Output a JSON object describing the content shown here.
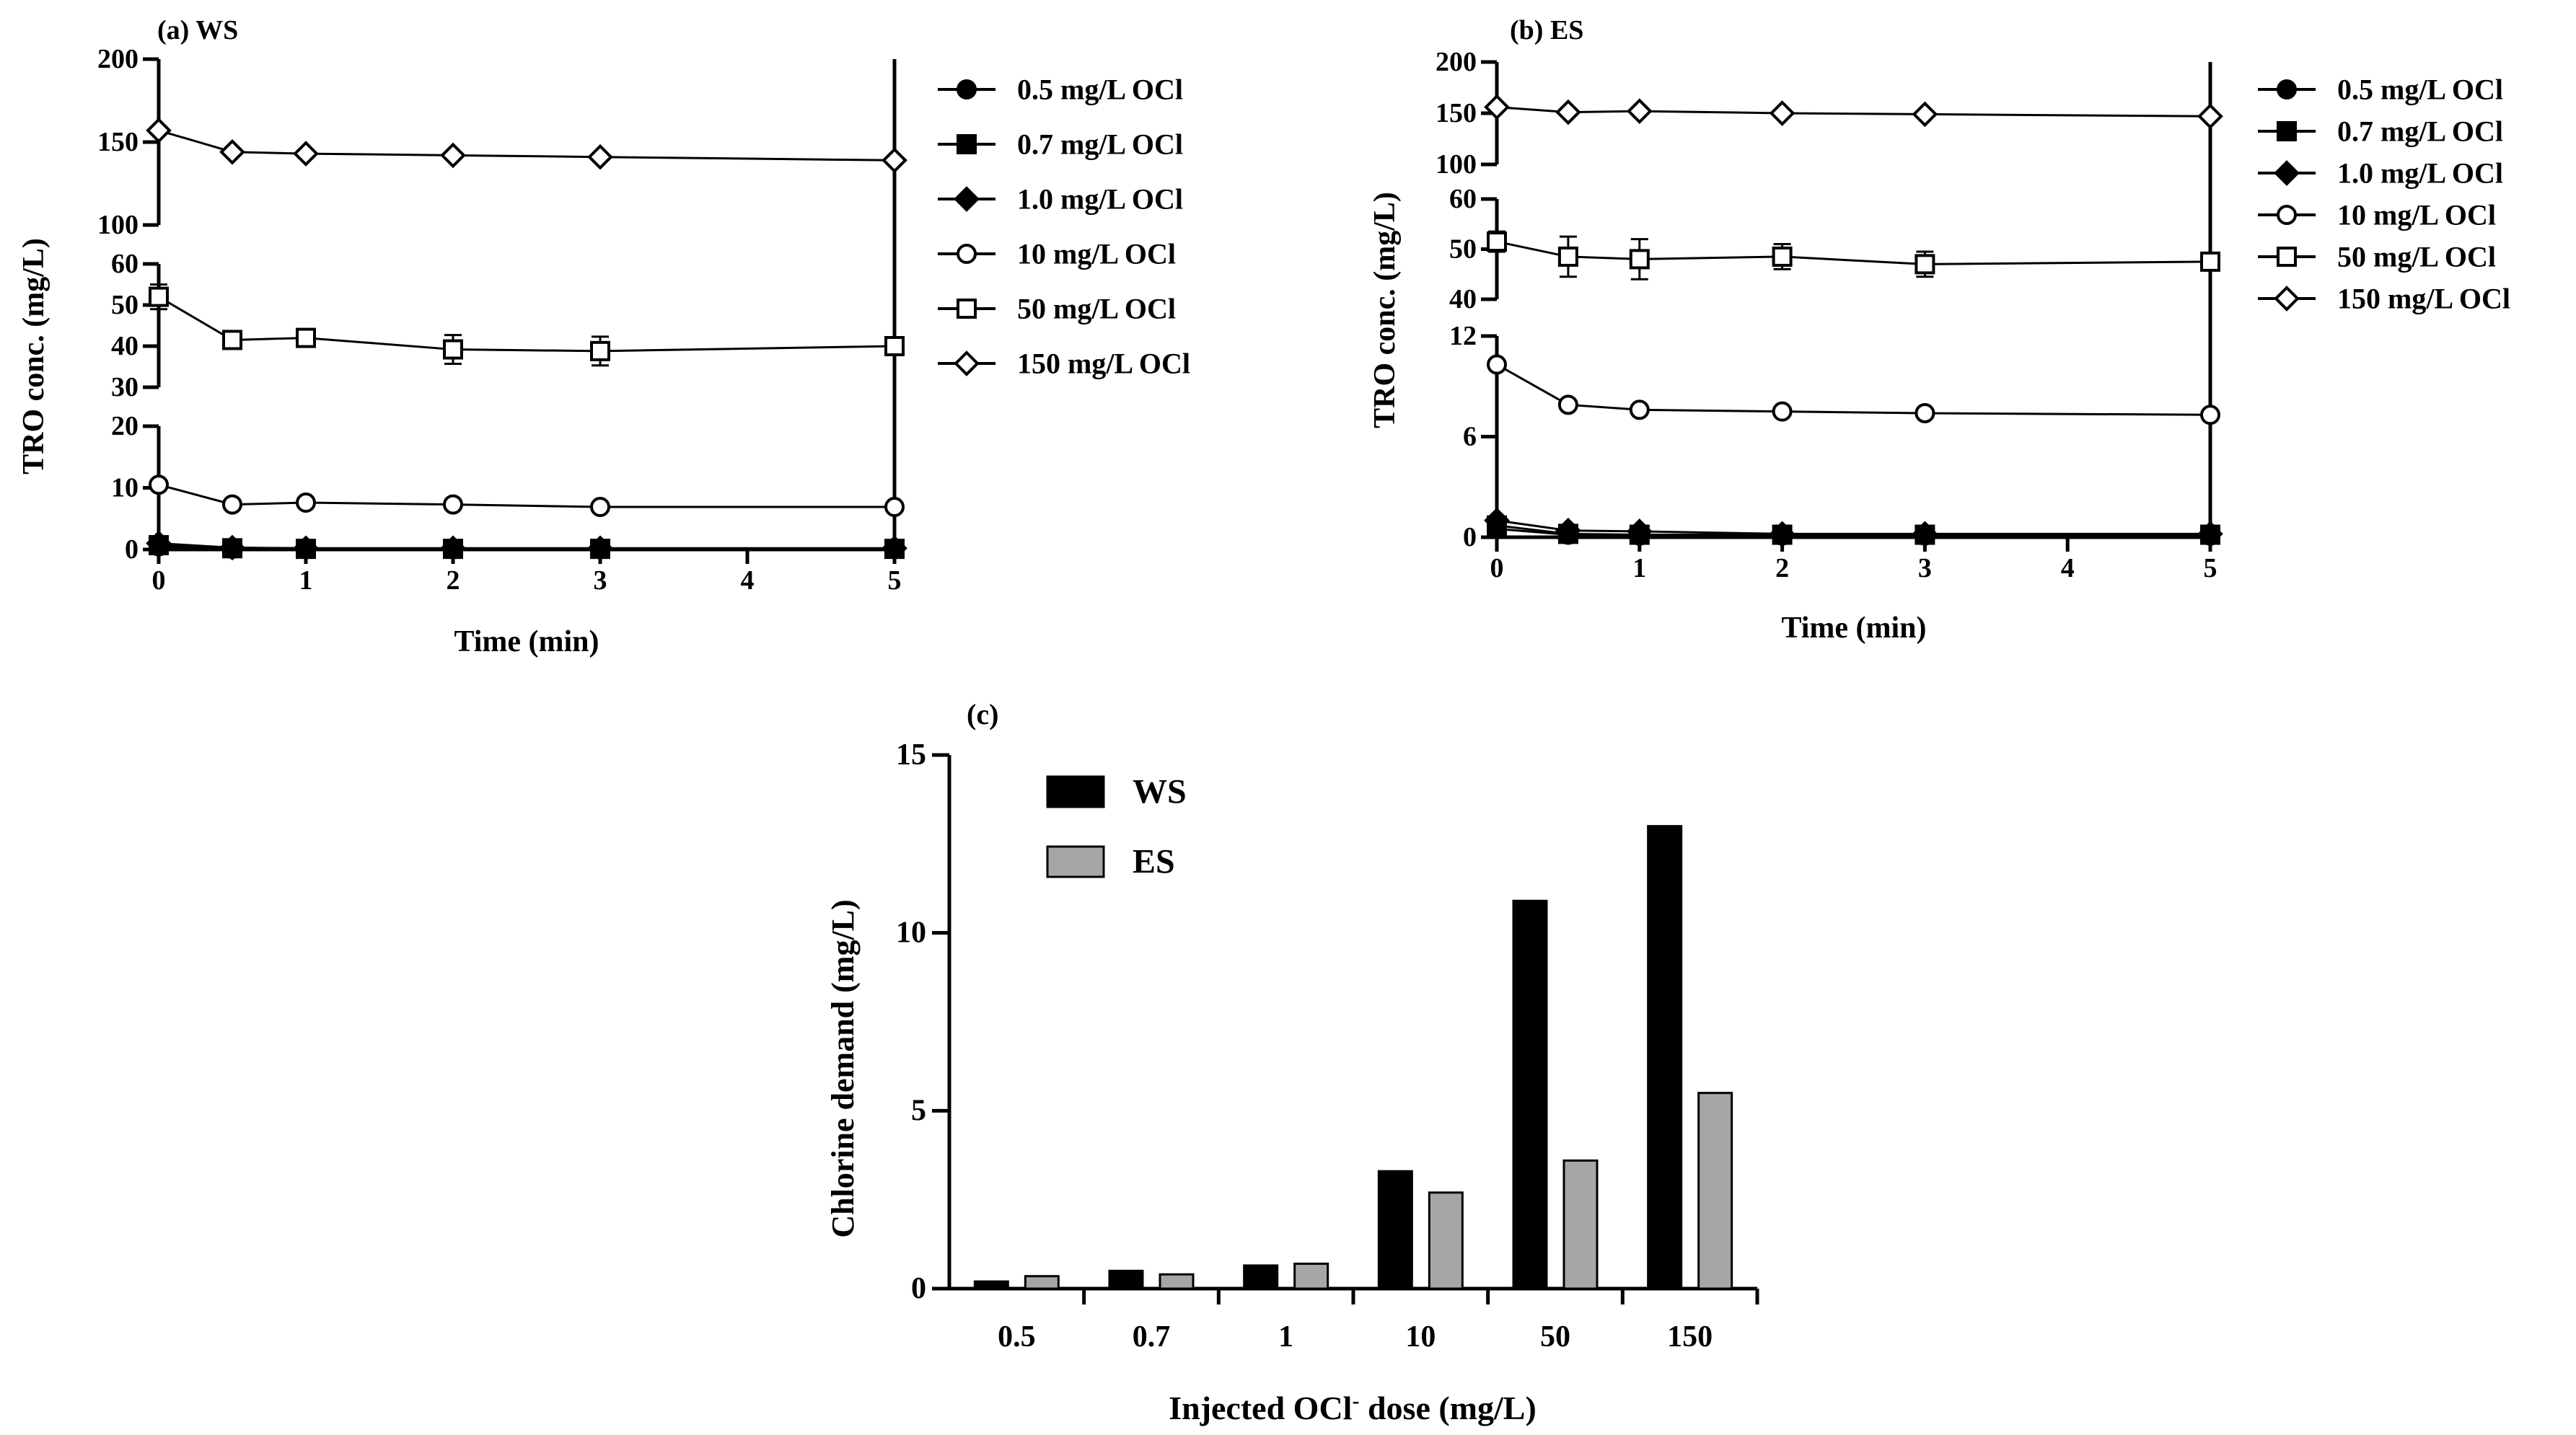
{
  "chart_data": [
    {
      "id": "a",
      "type": "line",
      "panel_label": "(a) WS",
      "xlabel": "Time (min)",
      "ylabel": "TRO conc. (mg/L)",
      "x_ticks": [
        "0",
        "1",
        "2",
        "3",
        "4",
        "5"
      ],
      "xlim": [
        0,
        5
      ],
      "y_segments": [
        {
          "range": [
            0,
            20
          ],
          "ticks": [
            "0",
            "10",
            "20"
          ]
        },
        {
          "range": [
            30,
            60
          ],
          "ticks": [
            "30",
            "40",
            "50",
            "60"
          ]
        },
        {
          "range": [
            100,
            200
          ],
          "ticks": [
            "100",
            "150",
            "200"
          ]
        }
      ],
      "series": [
        {
          "name": "0.5 mg/L OCl",
          "marker": "circle-filled",
          "x": [
            0,
            0.5,
            1,
            2,
            3,
            5
          ],
          "y": [
            0.5,
            0.1,
            0.1,
            0.1,
            0.1,
            0.1
          ]
        },
        {
          "name": "0.7 mg/L OCl",
          "marker": "square-filled",
          "x": [
            0,
            0.5,
            1,
            2,
            3,
            5
          ],
          "y": [
            0.7,
            0.2,
            0.1,
            0.1,
            0.1,
            0.1
          ]
        },
        {
          "name": "1.0 mg/L OCl",
          "marker": "diamond-filled",
          "x": [
            0,
            0.5,
            1,
            2,
            3,
            5
          ],
          "y": [
            1.0,
            0.3,
            0.2,
            0.2,
            0.2,
            0.2
          ]
        },
        {
          "name": "10 mg/L OCl",
          "marker": "circle-open",
          "x": [
            0,
            0.5,
            1,
            2,
            3,
            5
          ],
          "y": [
            10.5,
            7.3,
            7.6,
            7.3,
            6.9,
            6.9
          ]
        },
        {
          "name": "50 mg/L OCl",
          "marker": "square-open",
          "x": [
            0,
            0.5,
            1,
            2,
            3,
            5
          ],
          "y": [
            52,
            41.5,
            42,
            39.2,
            38.8,
            40
          ],
          "err": [
            3,
            1,
            1,
            3.5,
            3.5,
            1
          ]
        },
        {
          "name": "150 mg/L OCl",
          "marker": "diamond-open",
          "x": [
            0,
            0.5,
            1,
            2,
            3,
            5
          ],
          "y": [
            157,
            144,
            143,
            142,
            141,
            139
          ]
        }
      ]
    },
    {
      "id": "b",
      "type": "line",
      "panel_label": "(b) ES",
      "xlabel": "Time (min)",
      "ylabel": "TRO conc. (mg/L)",
      "x_ticks": [
        "0",
        "1",
        "2",
        "3",
        "4",
        "5"
      ],
      "xlim": [
        0,
        5
      ],
      "y_segments": [
        {
          "range": [
            0,
            12
          ],
          "ticks": [
            "0",
            "6",
            "12"
          ]
        },
        {
          "range": [
            40,
            60
          ],
          "ticks": [
            "40",
            "50",
            "60"
          ]
        },
        {
          "range": [
            100,
            200
          ],
          "ticks": [
            "100",
            "150",
            "200"
          ]
        }
      ],
      "series": [
        {
          "name": "0.5 mg/L OCl",
          "marker": "circle-filled",
          "x": [
            0,
            0.5,
            1,
            2,
            3,
            5
          ],
          "y": [
            0.5,
            0.15,
            0.1,
            0.1,
            0.1,
            0.1
          ]
        },
        {
          "name": "0.7 mg/L OCl",
          "marker": "square-filled",
          "x": [
            0,
            0.5,
            1,
            2,
            3,
            5
          ],
          "y": [
            0.7,
            0.2,
            0.15,
            0.15,
            0.15,
            0.15
          ]
        },
        {
          "name": "1.0 mg/L OCl",
          "marker": "diamond-filled",
          "x": [
            0,
            0.5,
            1,
            2,
            3,
            5
          ],
          "y": [
            1.0,
            0.4,
            0.35,
            0.2,
            0.2,
            0.2
          ]
        },
        {
          "name": "10 mg/L OCl",
          "marker": "circle-open",
          "x": [
            0,
            0.5,
            1,
            2,
            3,
            5
          ],
          "y": [
            10.3,
            7.9,
            7.6,
            7.5,
            7.4,
            7.3
          ]
        },
        {
          "name": "50 mg/L OCl",
          "marker": "square-open",
          "x": [
            0,
            0.5,
            1,
            2,
            3,
            5
          ],
          "y": [
            51.5,
            48.5,
            48,
            48.5,
            47,
            47.5
          ],
          "err": [
            2,
            4,
            4,
            2.5,
            2.5,
            1
          ]
        },
        {
          "name": "150 mg/L OCl",
          "marker": "diamond-open",
          "x": [
            0,
            0.5,
            1,
            2,
            3,
            5
          ],
          "y": [
            156,
            151,
            152,
            150,
            149,
            147
          ]
        }
      ]
    },
    {
      "id": "c",
      "type": "bar",
      "panel_label": "(c)",
      "xlabel": "Injected OCl",
      "xlabel_sup": "-",
      "xlabel_suffix": " dose (mg/L)",
      "ylabel": "Chlorine demand (mg/L)",
      "ylim": [
        0,
        15
      ],
      "y_ticks": [
        "0",
        "5",
        "10",
        "15"
      ],
      "categories": [
        "0.5",
        "0.7",
        "1",
        "10",
        "50",
        "150"
      ],
      "series": [
        {
          "name": "WS",
          "color": "#000000",
          "values": [
            0.2,
            0.5,
            0.65,
            3.3,
            10.9,
            13.0
          ]
        },
        {
          "name": "ES",
          "color": "#a6a6a6",
          "values": [
            0.35,
            0.4,
            0.7,
            2.7,
            3.6,
            5.5
          ]
        }
      ]
    }
  ]
}
